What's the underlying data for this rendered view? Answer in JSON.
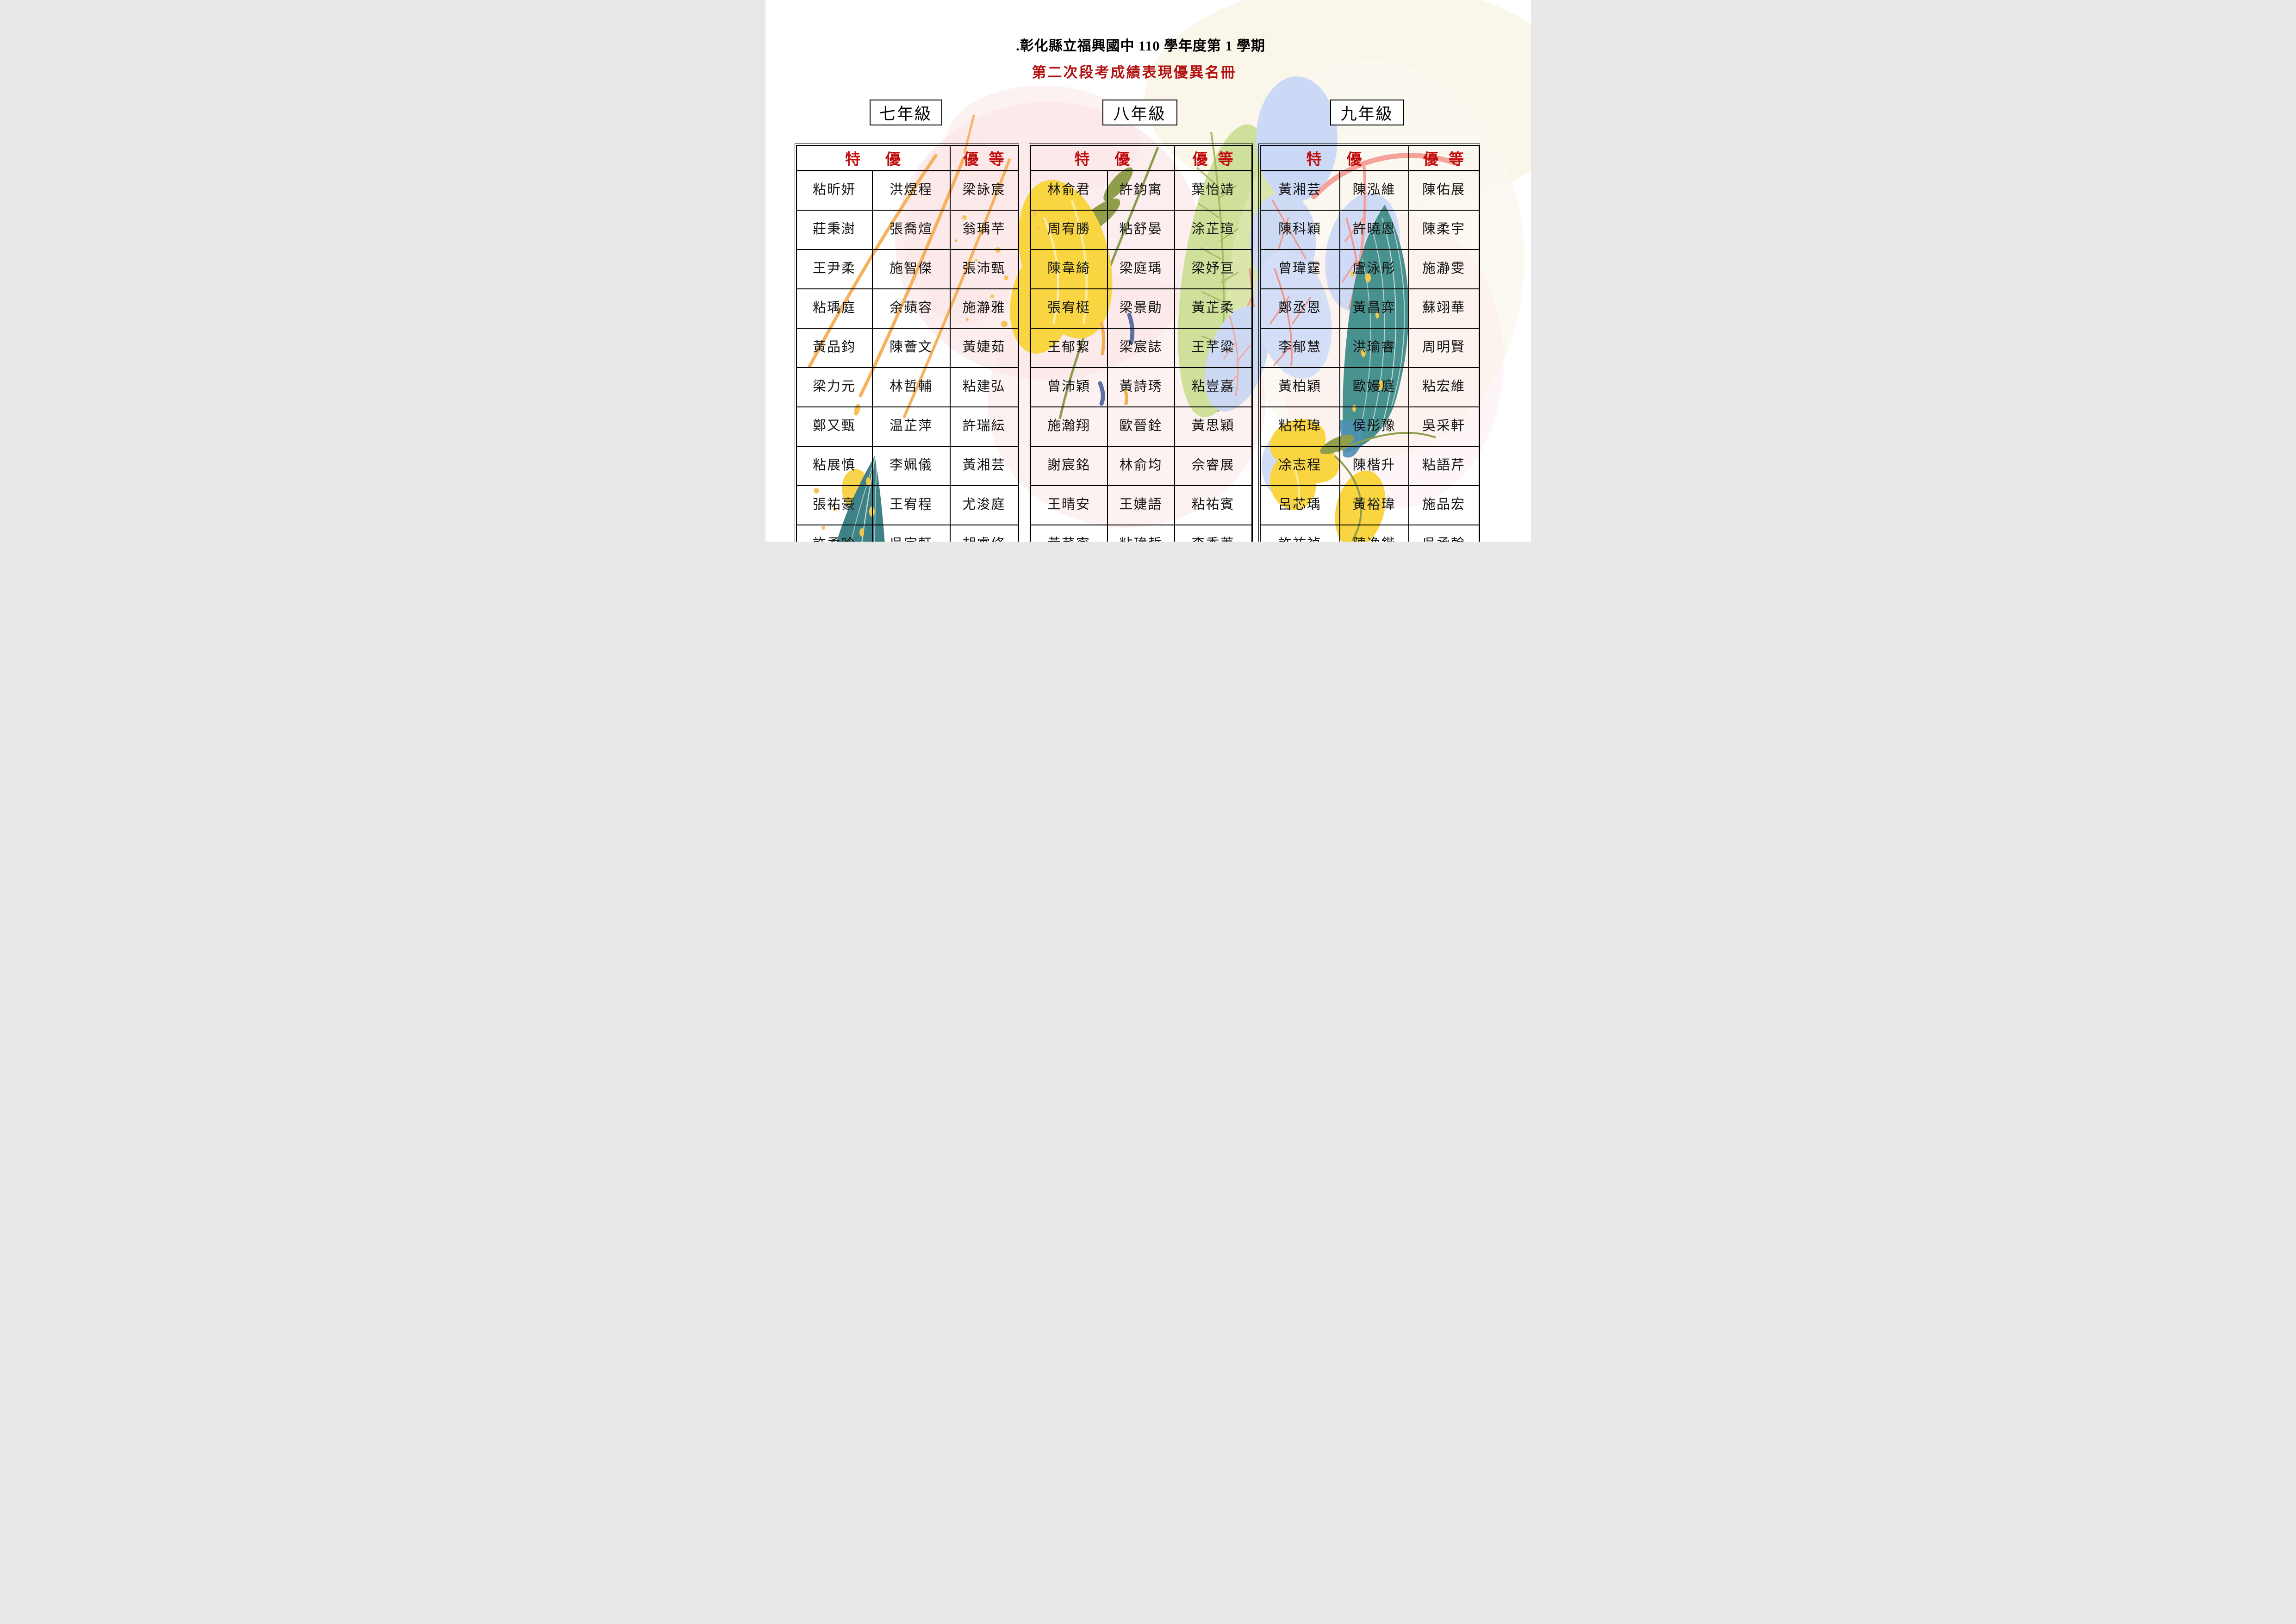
{
  "page": {
    "title_line1": ".彰化縣立福興國中 110 學年度第 1 學期",
    "title_line2": "第二次段考成績表現優異名冊"
  },
  "colors": {
    "title_text": "#000000",
    "subtitle_red": "#b21212",
    "header_red": "#c00d0d",
    "table_border": "#000000",
    "decor_orange": "#f5b15c",
    "decor_yellow": "#f8d541",
    "decor_pink": "#fbe5e5",
    "decor_cream": "#faf5e6",
    "decor_olive": "#8f9e4a",
    "decor_light_green": "#cfe09a",
    "decor_teal": "#47918f",
    "decor_dark_teal": "#3e8186",
    "decor_periwinkle": "#ccd9f6",
    "decor_coral": "#f2958b",
    "decor_navy": "#5e6fa3",
    "decor_steel_blue": "#4e90b4"
  },
  "decorations": [
    "orange-brush-curves",
    "orange-speckles",
    "pink-watercolor-wash",
    "cream-watercolor-wash",
    "yellow-flower",
    "yellow-moon",
    "olive-leaves",
    "light-green-leaf",
    "teal-leaf",
    "periwinkle-leaves",
    "coral-branches",
    "navy-brush-strokes"
  ],
  "tables": [
    {
      "grade": "七年級",
      "header": {
        "te_you": "特優",
        "you_deng": "優等"
      },
      "rows": [
        [
          "粘昕妍",
          "洪煜程",
          "梁詠宸"
        ],
        [
          "莊秉澍",
          "張喬煊",
          "翁瑀芉"
        ],
        [
          "王尹柔",
          "施智傑",
          "張沛甄"
        ],
        [
          "粘瑀庭",
          "余蘋容",
          "施瀞雅"
        ],
        [
          "黃品鈞",
          "陳薈文",
          "黃婕茹"
        ],
        [
          "梁力元",
          "林哲輔",
          "粘建弘"
        ],
        [
          "鄭又甄",
          "温芷萍",
          "許瑞紜"
        ],
        [
          "粘展慎",
          "李姵儀",
          "黃湘芸"
        ],
        [
          "張祐豪",
          "王宥程",
          "尤浚庭"
        ],
        [
          "許柔吟",
          "吳宇軒",
          "胡睿修"
        ]
      ]
    },
    {
      "grade": "八年級",
      "header": {
        "te_you": "特優",
        "you_deng": "優等"
      },
      "rows": [
        [
          "林俞君",
          "許鈞寓",
          "葉怡靖"
        ],
        [
          "周宥勝",
          "粘舒晏",
          "涂芷瑄"
        ],
        [
          "陳韋綺",
          "梁庭瑀",
          "梁妤亘"
        ],
        [
          "張宥梃",
          "梁景勛",
          "黃芷柔"
        ],
        [
          "王郁絜",
          "梁宸誌",
          "王芊粱"
        ],
        [
          "曾沛穎",
          "黃詩琇",
          "粘豈嘉"
        ],
        [
          "施瀚翔",
          "歐晉銓",
          "黃思穎"
        ],
        [
          "謝宸銘",
          "林俞均",
          "佘睿展"
        ],
        [
          "王晴安",
          "王婕語",
          "粘祐賓"
        ],
        [
          "黃芊寧",
          "粘瑋哲",
          "李季蓁"
        ]
      ]
    },
    {
      "grade": "九年級",
      "header": {
        "te_you": "特優",
        "you_deng": "優等"
      },
      "rows": [
        [
          "黃湘芸",
          "陳泓維",
          "陳佑展"
        ],
        [
          "陳科穎",
          "許曉恩",
          "陳柔宇"
        ],
        [
          "曾瑋霆",
          "盧泳彤",
          "施瀞雯"
        ],
        [
          "鄭丞恩",
          "黃昌弈",
          "蘇翊華"
        ],
        [
          "李郁慧",
          "洪瑜睿",
          "周明賢"
        ],
        [
          "黃柏穎",
          "歐嫚庭",
          "粘宏維"
        ],
        [
          "粘祐瑋",
          "侯彤豫",
          "吳采軒"
        ],
        [
          "凃志程",
          "陳楷升",
          "粘語芹"
        ],
        [
          "呂芯瑀",
          "黃裕瑋",
          "施品宏"
        ],
        [
          "許祐禎",
          "陳逸鍇",
          "吳承翰"
        ]
      ]
    }
  ]
}
